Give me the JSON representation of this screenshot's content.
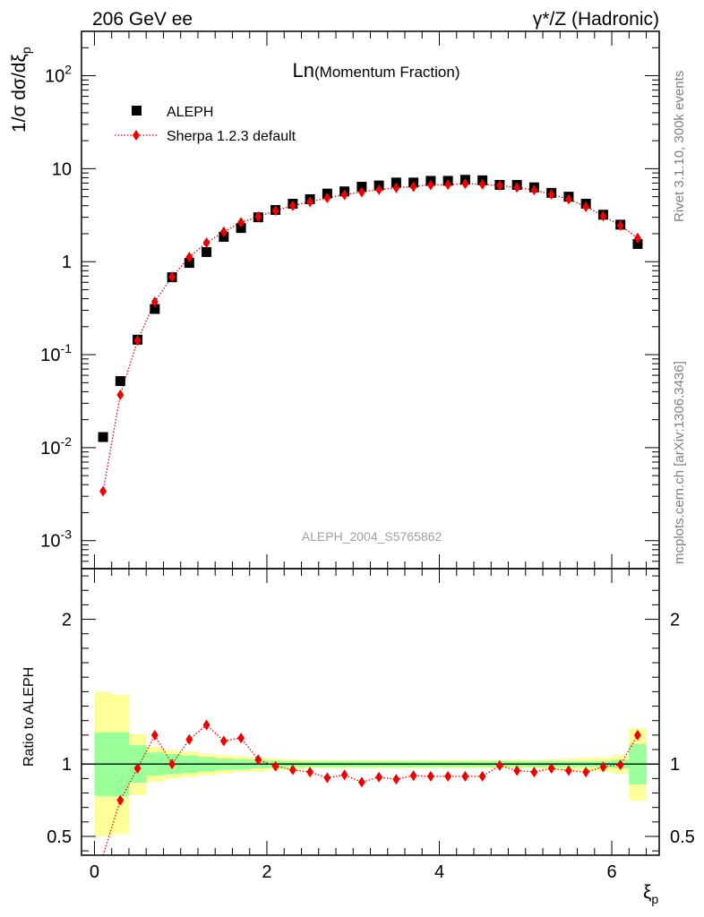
{
  "header": {
    "left": "206 GeV ee",
    "right_prefix": "γ*/Z",
    "right_suffix": "(Hadronic)"
  },
  "side_labels": {
    "rivet": "Rivet 3.1.10,  300k events",
    "mcplots": "mcplots.cern.ch [arXiv:1306.3436]"
  },
  "main": {
    "title_big": "Ln",
    "title_small": "(Momentum Fraction)",
    "analysis": "ALEPH_2004_S5765862",
    "ylabel": "1/σ dσ/dξ",
    "ylabel_sub": "p"
  },
  "legend": {
    "data_label": "ALEPH",
    "mc_label": "Sherpa 1.2.3 default"
  },
  "ratio": {
    "ylabel": "Ratio to ALEPH"
  },
  "xaxis": {
    "label": "ξ",
    "label_sub": "p"
  },
  "colors": {
    "data": "#000000",
    "mc": "#ee0000",
    "band_inner": "#99ff99",
    "band_outer": "#ffff99",
    "side_text": "#808080"
  },
  "chart_data": [
    {
      "type": "scatter",
      "title": "Ln(Momentum Fraction)",
      "xlabel": "ξp",
      "ylabel": "1/σ dσ/dξp",
      "yscale": "log",
      "xlim": [
        -0.15,
        6.55
      ],
      "ylim": [
        0.0005,
        300
      ],
      "yticks": [
        "10^-3",
        "10^-2",
        "10^-1",
        "1",
        "10",
        "10^2"
      ],
      "legend": "top-left",
      "series": [
        {
          "name": "ALEPH",
          "marker": "square",
          "x": [
            0.1,
            0.3,
            0.5,
            0.7,
            0.9,
            1.1,
            1.3,
            1.5,
            1.7,
            1.9,
            2.1,
            2.3,
            2.5,
            2.7,
            2.9,
            3.1,
            3.3,
            3.5,
            3.7,
            3.9,
            4.1,
            4.3,
            4.5,
            4.7,
            4.9,
            5.1,
            5.3,
            5.5,
            5.7,
            5.9,
            6.1,
            6.3
          ],
          "y": [
            0.013,
            0.052,
            0.145,
            0.31,
            0.68,
            0.97,
            1.27,
            1.85,
            2.3,
            3.0,
            3.6,
            4.2,
            4.7,
            5.4,
            5.7,
            6.4,
            6.6,
            7.1,
            7.1,
            7.4,
            7.4,
            7.6,
            7.5,
            6.7,
            6.7,
            6.3,
            5.5,
            5.0,
            4.2,
            3.2,
            2.5,
            1.55
          ]
        },
        {
          "name": "Sherpa 1.2.3 default",
          "marker": "diamond",
          "line": "dotted",
          "x": [
            0.1,
            0.3,
            0.5,
            0.7,
            0.9,
            1.1,
            1.3,
            1.5,
            1.7,
            1.9,
            2.1,
            2.3,
            2.5,
            2.7,
            2.9,
            3.1,
            3.3,
            3.5,
            3.7,
            3.9,
            4.1,
            4.3,
            4.5,
            4.7,
            4.9,
            5.1,
            5.3,
            5.5,
            5.7,
            5.9,
            6.1,
            6.3
          ],
          "y": [
            0.0034,
            0.037,
            0.142,
            0.37,
            0.69,
            1.12,
            1.6,
            2.1,
            2.65,
            3.05,
            3.55,
            4.0,
            4.4,
            4.85,
            5.25,
            5.6,
            5.95,
            6.25,
            6.4,
            6.7,
            6.75,
            6.9,
            6.8,
            6.6,
            6.3,
            5.9,
            5.3,
            4.7,
            3.9,
            3.1,
            2.45,
            1.8
          ]
        }
      ]
    },
    {
      "type": "line",
      "title": "",
      "xlabel": "ξp",
      "ylabel": "Ratio to ALEPH",
      "xlim": [
        -0.15,
        6.55
      ],
      "ylim": [
        0.37,
        2.35
      ],
      "yticks": [
        0.5,
        1,
        2
      ],
      "xticks": [
        0,
        2,
        4,
        6
      ],
      "series": [
        {
          "name": "Sherpa 1.2.3 default",
          "x": [
            0.1,
            0.3,
            0.5,
            0.7,
            0.9,
            1.1,
            1.3,
            1.5,
            1.7,
            1.9,
            2.1,
            2.3,
            2.5,
            2.7,
            2.9,
            3.1,
            3.3,
            3.5,
            3.7,
            3.9,
            4.1,
            4.3,
            4.5,
            4.7,
            4.9,
            5.1,
            5.3,
            5.5,
            5.7,
            5.9,
            6.1,
            6.3
          ],
          "y": [
            0.26,
            0.75,
            0.97,
            1.2,
            1.0,
            1.17,
            1.27,
            1.16,
            1.18,
            1.03,
            0.985,
            0.96,
            0.945,
            0.905,
            0.925,
            0.875,
            0.91,
            0.895,
            0.92,
            0.915,
            0.915,
            0.915,
            0.915,
            0.99,
            0.955,
            0.945,
            0.97,
            0.955,
            0.945,
            0.98,
            0.995,
            1.2
          ]
        }
      ],
      "bands": {
        "x_edges": [
          0.0,
          0.2,
          0.4,
          0.6,
          0.8,
          1.0,
          1.2,
          1.4,
          1.6,
          1.8,
          2.0,
          2.2,
          2.4,
          2.6,
          2.8,
          3.0,
          3.2,
          3.4,
          3.6,
          3.8,
          4.0,
          4.2,
          4.4,
          4.6,
          4.8,
          5.0,
          5.2,
          5.4,
          5.6,
          5.8,
          6.0,
          6.2,
          6.4
        ],
        "inner_half": [
          0.22,
          0.22,
          0.13,
          0.08,
          0.07,
          0.06,
          0.05,
          0.04,
          0.035,
          0.03,
          0.025,
          0.02,
          0.02,
          0.02,
          0.02,
          0.02,
          0.02,
          0.02,
          0.02,
          0.02,
          0.02,
          0.02,
          0.02,
          0.02,
          0.02,
          0.02,
          0.02,
          0.02,
          0.02,
          0.02,
          0.03,
          0.14
        ],
        "outer_half": [
          0.5,
          0.48,
          0.21,
          0.12,
          0.1,
          0.09,
          0.075,
          0.065,
          0.055,
          0.05,
          0.04,
          0.035,
          0.03,
          0.03,
          0.03,
          0.03,
          0.03,
          0.03,
          0.03,
          0.03,
          0.03,
          0.03,
          0.03,
          0.03,
          0.03,
          0.03,
          0.035,
          0.04,
          0.045,
          0.05,
          0.065,
          0.25
        ]
      }
    }
  ]
}
